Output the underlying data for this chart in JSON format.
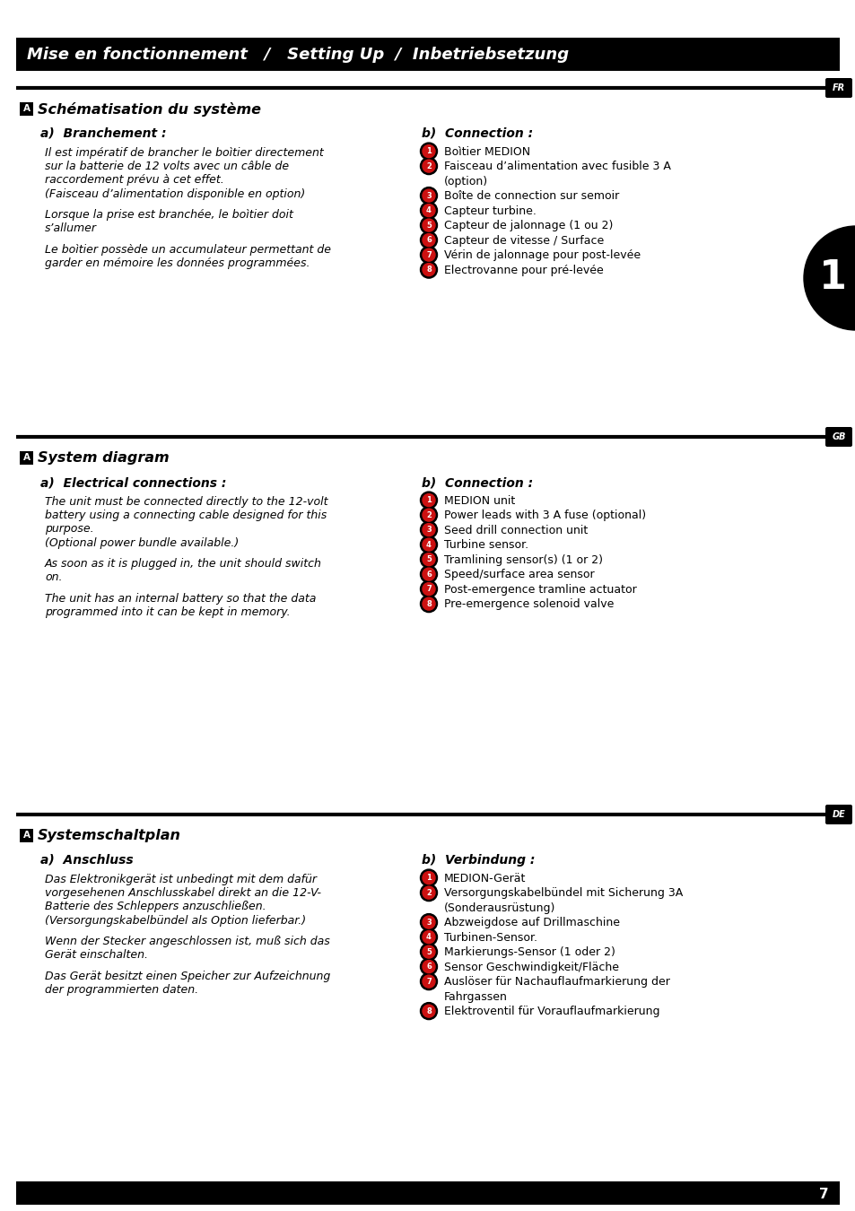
{
  "header_text": "Mise en fonctionnement   /   Setting Up  /  Inbetriebsetzung",
  "bg_color": "#ffffff",
  "header_bg": "#000000",
  "header_text_color": "#ffffff",
  "section_fr_label": "FR",
  "section_gb_label": "GB",
  "section_de_label": "DE",
  "fr_title": "Schématisation du système",
  "fr_a_title": "a)  Branchement :",
  "fr_b_title": "b)  Connection :",
  "fr_a_text": [
    "Il est impératif de brancher le boìtier directement",
    "sur la batterie de 12 volts avec un câble de",
    "raccordement prévu à cet effet.",
    "(Faisceau d’alimentation disponible en option)",
    "",
    "Lorsque la prise est branchée, le boìtier doit",
    "s’allumer",
    "",
    "Le boìtier possède un accumulateur permettant de",
    "garder en mémoire les données programmées."
  ],
  "fr_b_items": [
    "Boìtier MEDION",
    [
      "Faisceau d’alimentation avec fusible 3 A",
      "(option)"
    ],
    "Boîte de connection sur semoir",
    "Capteur turbine.",
    "Capteur de jalonnage (1 ou 2)",
    "Capteur de vitesse / Surface",
    "Vérin de jalonnage pour post-levée",
    "Electrovanne pour pré-levée"
  ],
  "gb_title": "System diagram",
  "gb_a_title": "a)  Electrical connections :",
  "gb_b_title": "b)  Connection :",
  "gb_a_text": [
    "The unit must be connected directly to the 12-volt",
    "battery using a connecting cable designed for this",
    "purpose.",
    "(Optional power bundle available.)",
    "",
    "As soon as it is plugged in, the unit should switch",
    "on.",
    "",
    "The unit has an internal battery so that the data",
    "programmed into it can be kept in memory."
  ],
  "gb_b_items": [
    "MEDION unit",
    "Power leads with 3 A fuse (optional)",
    "Seed drill connection unit",
    "Turbine sensor.",
    "Tramlining sensor(s) (1 or 2)",
    "Speed/surface area sensor",
    "Post-emergence tramline actuator",
    "Pre-emergence solenoid valve"
  ],
  "de_title": "Systemschaltplan",
  "de_a_title": "a)  Anschluss",
  "de_b_title": "b)  Verbindung :",
  "de_a_text": [
    "Das Elektronikgerät ist unbedingt mit dem dafür",
    "vorgesehenen Anschlusskabel direkt an die 12-V-",
    "Batterie des Schleppers anzuschließen.",
    "(Versorgungskabelbündel als Option lieferbar.)",
    "",
    "Wenn der Stecker angeschlossen ist, muß sich das",
    "Gerät einschalten.",
    "",
    "Das Gerät besitzt einen Speicher zur Aufzeichnung",
    "der programmierten daten."
  ],
  "de_b_items": [
    "MEDION-Gerät",
    [
      "Versorgungskabelbündel mit Sicherung 3A",
      "(Sonderausrüstung)"
    ],
    "Abzweigdose auf Drillmaschine",
    "Turbinen-Sensor.",
    "Markierungs-Sensor (1 oder 2)",
    "Sensor Geschwindigkeit/Fläche",
    [
      "Auslöser für Nachauflaufmarkierung der",
      "Fahrgassen"
    ],
    "Elektroventil für Vorauflaufmarkierung"
  ],
  "page_number": "7"
}
